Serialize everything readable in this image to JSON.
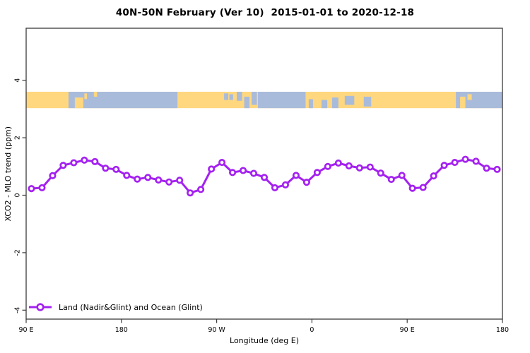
{
  "title": "40N-50N February (Ver 10)  2015-01-01 to 2020-12-18",
  "axes": {
    "x_title": "Longitude (deg E)",
    "y_title": "XCO2 - MLO trend (ppm)",
    "x_ticks": [
      {
        "label": "90 E",
        "lon": 90
      },
      {
        "label": "180",
        "lon": 180
      },
      {
        "label": "90 W",
        "lon": 270
      },
      {
        "label": "0",
        "lon": 360
      },
      {
        "label": "90 E",
        "lon": 450
      },
      {
        "label": "180",
        "lon": 540
      }
    ],
    "y_ticks": [
      {
        "label": "-4",
        "value": -4
      },
      {
        "label": "-2",
        "value": -2
      },
      {
        "label": "0",
        "value": 0
      },
      {
        "label": "2",
        "value": 2
      },
      {
        "label": "4",
        "value": 4
      }
    ]
  },
  "legend": {
    "label": "Land (Nadir&Glint) and Ocean (Glint)"
  },
  "colors": {
    "series": "#A421F0",
    "marker_fill": "#ffffff",
    "land": "#FFD77E",
    "ocean": "#A9BBDB",
    "axis": "#3a3a3a",
    "background": "#ffffff"
  },
  "chart_data": {
    "type": "line",
    "title": "40N-50N February (Ver 10)  2015-01-01 to 2020-12-18",
    "xlabel": "Longitude (deg E)",
    "ylabel": "XCO2 - MLO trend (ppm)",
    "xlim": [
      90,
      540
    ],
    "ylim": [
      -4.3,
      5.8
    ],
    "x_axis_note": "longitude wraps eastward from 90E around the globe 1.25 turns; ticks shown as 90 E, 180, 90 W, 0, 90 E, 180",
    "grid": false,
    "legend_position": "bottom-left",
    "series": [
      {
        "name": "Land (Nadir&Glint) and Ocean (Glint)",
        "color": "#A421F0",
        "marker": "open-circle",
        "x": [
          95,
          105,
          115,
          125,
          135,
          145,
          155,
          165,
          175,
          185,
          195,
          205,
          215,
          225,
          235,
          245,
          255,
          265,
          275,
          285,
          295,
          305,
          315,
          325,
          335,
          345,
          355,
          365,
          375,
          385,
          395,
          405,
          415,
          425,
          435,
          445,
          455,
          465,
          475,
          485,
          495,
          505,
          515,
          525,
          535
        ],
        "y": [
          0.23,
          0.26,
          0.68,
          1.04,
          1.13,
          1.22,
          1.17,
          0.94,
          0.9,
          0.69,
          0.56,
          0.62,
          0.53,
          0.46,
          0.52,
          0.08,
          0.2,
          0.91,
          1.14,
          0.79,
          0.86,
          0.76,
          0.62,
          0.26,
          0.36,
          0.69,
          0.45,
          0.79,
          1.0,
          1.12,
          1.02,
          0.95,
          0.98,
          0.77,
          0.55,
          0.69,
          0.24,
          0.27,
          0.67,
          1.04,
          1.14,
          1.25,
          1.18,
          0.94,
          0.9
        ]
      }
    ],
    "map_band": {
      "description": "land/ocean world strip for latitude 40N-50N drawn across the top of the plot",
      "value_top": 3.6,
      "value_bottom": 3.03,
      "land_color": "#FFD77E",
      "ocean_color": "#A9BBDB",
      "ocean_segments": [
        [
          130,
          233
        ],
        [
          314,
          354
        ],
        [
          496,
          540
        ]
      ],
      "ocean_patches": [
        [
          277,
          281,
          0.1,
          0.5
        ],
        [
          282,
          285.5,
          0.15,
          0.5
        ],
        [
          289,
          294,
          0.0,
          0.55
        ],
        [
          296,
          301,
          0.3,
          1.0
        ],
        [
          303,
          308,
          0.0,
          0.8
        ],
        [
          309,
          314,
          0.0,
          1.0
        ],
        [
          357,
          361,
          0.45,
          1.0
        ],
        [
          369,
          374.5,
          0.5,
          1.0
        ],
        [
          379,
          385,
          0.35,
          1.0
        ],
        [
          391,
          400,
          0.25,
          0.8
        ],
        [
          409,
          416,
          0.3,
          0.9
        ]
      ],
      "land_patches": [
        [
          136,
          144,
          0.35,
          1.0
        ],
        [
          145,
          147.5,
          0.1,
          0.45
        ],
        [
          154,
          157,
          0.0,
          0.3
        ],
        [
          500,
          505,
          0.3,
          1.0
        ],
        [
          507,
          511,
          0.15,
          0.5
        ]
      ]
    }
  }
}
